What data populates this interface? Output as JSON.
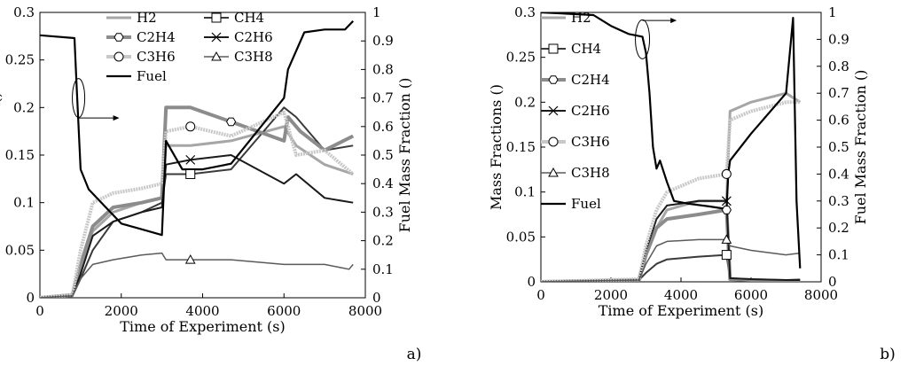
{
  "colors": {
    "H2": "#a6a6a6",
    "CH4": "#3a3a3a",
    "C2H4": "#8c8c8c",
    "C2H6": "#1a1a1a",
    "C3H6": "#c8c8c8",
    "C3H8": "#5a5a5a",
    "Fuel": "#000000"
  },
  "chart_data": [
    {
      "type": "line",
      "panel_label": "a)",
      "xlabel": "Time of Experiment (s)",
      "ylabel": "Mass Fractions ()",
      "y2label": "Fuel Mass Fraction ()",
      "xlim": [
        0,
        8000
      ],
      "ylim": [
        0,
        0.3
      ],
      "y2lim": [
        0,
        1
      ],
      "xticks": [
        "0",
        "2000",
        "4000",
        "6000",
        "8000"
      ],
      "yticks": [
        "0",
        "0.05",
        "0.1",
        "0.15",
        "0.2",
        "0.25",
        "0.3"
      ],
      "y2ticks": [
        "0",
        "0.1",
        "0.2",
        "0.3",
        "0.4",
        "0.5",
        "0.6",
        "0.7",
        "0.8",
        "0.9",
        "1"
      ],
      "legend": [
        "H2",
        "CH4",
        "C2H4",
        "C2H6",
        "C3H6",
        "C3H8",
        "Fuel"
      ],
      "series": [
        {
          "name": "H2",
          "axis": "left",
          "x": [
            0,
            800,
            1000,
            1300,
            1800,
            2500,
            3000,
            3100,
            3700,
            4700,
            6000,
            6300,
            7000,
            7700
          ],
          "y": [
            0,
            0.002,
            0.03,
            0.07,
            0.09,
            0.1,
            0.105,
            0.16,
            0.16,
            0.165,
            0.18,
            0.16,
            0.14,
            0.13
          ]
        },
        {
          "name": "CH4",
          "axis": "left",
          "x": [
            0,
            800,
            1000,
            1300,
            1800,
            2500,
            3000,
            3100,
            3700,
            4700,
            6000,
            6300,
            7000,
            7700
          ],
          "y": [
            0,
            0.002,
            0.02,
            0.05,
            0.08,
            0.09,
            0.1,
            0.13,
            0.13,
            0.135,
            0.2,
            0.19,
            0.155,
            0.16
          ]
        },
        {
          "name": "C2H4",
          "axis": "left",
          "x": [
            0,
            800,
            1000,
            1300,
            1800,
            2500,
            3000,
            3100,
            3700,
            4700,
            6000,
            6100,
            6400,
            7000,
            7700
          ],
          "y": [
            0,
            0.003,
            0.035,
            0.075,
            0.095,
            0.1,
            0.105,
            0.2,
            0.2,
            0.185,
            0.165,
            0.19,
            0.175,
            0.155,
            0.17
          ]
        },
        {
          "name": "C2H6",
          "axis": "left",
          "x": [
            0,
            800,
            1000,
            1300,
            1800,
            2500,
            3000,
            3100,
            3700,
            4700,
            6000,
            6300,
            7000,
            7700
          ],
          "y": [
            0,
            0.002,
            0.025,
            0.065,
            0.08,
            0.09,
            0.095,
            0.14,
            0.145,
            0.15,
            0.12,
            0.13,
            0.105,
            0.1
          ]
        },
        {
          "name": "C3H6",
          "axis": "left",
          "x": [
            0,
            800,
            1000,
            1300,
            1800,
            2500,
            3000,
            3100,
            3700,
            4700,
            6000,
            6300,
            7000,
            7700
          ],
          "y": [
            0,
            0.003,
            0.05,
            0.1,
            0.11,
            0.115,
            0.12,
            0.175,
            0.18,
            0.17,
            0.195,
            0.15,
            0.155,
            0.13
          ]
        },
        {
          "name": "C3H8",
          "axis": "left",
          "x": [
            0,
            800,
            1000,
            1300,
            1800,
            2500,
            3000,
            3100,
            3700,
            4700,
            6000,
            7000,
            7600,
            7700
          ],
          "y": [
            0,
            0.002,
            0.02,
            0.035,
            0.04,
            0.045,
            0.047,
            0.04,
            0.04,
            0.04,
            0.035,
            0.035,
            0.03,
            0.035
          ]
        },
        {
          "name": "Fuel",
          "axis": "right",
          "x": [
            0,
            850,
            900,
            950,
            1000,
            1200,
            1600,
            2000,
            2500,
            3000,
            3100,
            3500,
            4000,
            4700,
            6000,
            6100,
            6500,
            7000,
            7500,
            7700
          ],
          "y": [
            0.92,
            0.91,
            0.75,
            0.6,
            0.45,
            0.38,
            0.32,
            0.26,
            0.24,
            0.22,
            0.55,
            0.45,
            0.45,
            0.47,
            0.7,
            0.8,
            0.93,
            0.94,
            0.94,
            0.97
          ]
        }
      ]
    },
    {
      "type": "line",
      "panel_label": "b)",
      "xlabel": "Time of Experiment (s)",
      "ylabel": "Mass Fractions ()",
      "y2label": "Fuel Mass Fraction ()",
      "xlim": [
        0,
        8000
      ],
      "ylim": [
        0,
        0.3
      ],
      "y2lim": [
        0,
        1
      ],
      "xticks": [
        "0",
        "2000",
        "4000",
        "6000",
        "8000"
      ],
      "yticks": [
        "0",
        "0.05",
        "0.1",
        "0.15",
        "0.2",
        "0.25",
        "0.3"
      ],
      "y2ticks": [
        "0",
        "0.1",
        "0.2",
        "0.3",
        "0.4",
        "0.5",
        "0.6",
        "0.7",
        "0.8",
        "0.9",
        "1"
      ],
      "legend": [
        "H2",
        "CH4",
        "C2H4",
        "C2H6",
        "C3H6",
        "C3H8",
        "Fuel"
      ],
      "series": [
        {
          "name": "H2",
          "axis": "left",
          "x": [
            0,
            2800,
            3000,
            3300,
            3600,
            4500,
            5300,
            5400,
            6000,
            7000,
            7400
          ],
          "y": [
            0,
            0.002,
            0.03,
            0.06,
            0.08,
            0.09,
            0.09,
            0.19,
            0.2,
            0.21,
            0.2
          ]
        },
        {
          "name": "CH4",
          "axis": "left",
          "x": [
            0,
            2800,
            3000,
            3300,
            3600,
            4500,
            5300,
            5400,
            6000,
            7000,
            7400
          ],
          "y": [
            0,
            0.002,
            0.01,
            0.02,
            0.025,
            0.028,
            0.03,
            0.003,
            0.002,
            0.001,
            0.001
          ]
        },
        {
          "name": "C2H4",
          "axis": "left",
          "x": [
            0,
            2800,
            3000,
            3300,
            3600,
            4500,
            5300,
            5400,
            6000,
            7000,
            7400
          ],
          "y": [
            0,
            0.002,
            0.03,
            0.06,
            0.07,
            0.075,
            0.08,
            0.003,
            0.002,
            0.001,
            0.002
          ]
        },
        {
          "name": "C2H6",
          "axis": "left",
          "x": [
            0,
            2800,
            3000,
            3300,
            3600,
            4500,
            5300,
            5400,
            6000,
            7000,
            7400
          ],
          "y": [
            0,
            0.002,
            0.035,
            0.07,
            0.085,
            0.09,
            0.09,
            0.004,
            0.003,
            0.002,
            0.002
          ]
        },
        {
          "name": "C3H6",
          "axis": "left",
          "x": [
            0,
            2800,
            3000,
            3300,
            3600,
            4500,
            5300,
            5400,
            6000,
            7000,
            7400
          ],
          "y": [
            0,
            0.003,
            0.04,
            0.08,
            0.1,
            0.115,
            0.12,
            0.18,
            0.19,
            0.2,
            0.2
          ]
        },
        {
          "name": "C3H8",
          "axis": "left",
          "x": [
            0,
            2800,
            3000,
            3300,
            3600,
            4500,
            5300,
            5400,
            6000,
            7000,
            7400
          ],
          "y": [
            0,
            0.002,
            0.02,
            0.04,
            0.045,
            0.047,
            0.047,
            0.04,
            0.035,
            0.03,
            0.032
          ]
        },
        {
          "name": "Fuel",
          "axis": "right",
          "x": [
            0,
            1500,
            2000,
            2500,
            2900,
            3000,
            3100,
            3200,
            3300,
            3400,
            3600,
            3800,
            4200,
            4800,
            5300,
            5350,
            5400,
            6000,
            7000,
            7200,
            7300,
            7400
          ],
          "y": [
            1.0,
            0.99,
            0.95,
            0.92,
            0.91,
            0.85,
            0.7,
            0.5,
            0.42,
            0.45,
            0.37,
            0.3,
            0.29,
            0.28,
            0.27,
            0.4,
            0.45,
            0.55,
            0.7,
            0.98,
            0.3,
            0.05
          ]
        }
      ]
    }
  ]
}
